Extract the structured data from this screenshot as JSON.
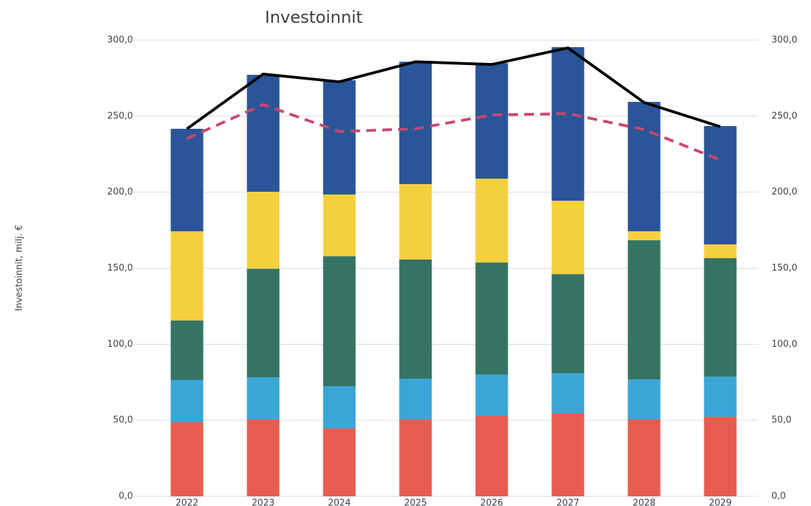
{
  "chart_data": {
    "type": "bar",
    "stacked": true,
    "title": "Investoinnit",
    "ylabel": "Investoinnit, milj. €",
    "categories": [
      "2022",
      "2023",
      "2024",
      "2025",
      "2026",
      "2027",
      "2028",
      "2029"
    ],
    "series": [
      {
        "color": "#e85c50",
        "values": [
          48.7,
          50.5,
          44.6,
          50.5,
          52.8,
          54.6,
          50.5,
          52.3
        ]
      },
      {
        "color": "#3aa6d8",
        "values": [
          27.8,
          27.8,
          27.8,
          26.9,
          27.3,
          26.4,
          26.4,
          26.4
        ]
      },
      {
        "color": "#357363",
        "values": [
          39.1,
          71.4,
          85.5,
          78.3,
          73.7,
          65.1,
          91.5,
          77.9
        ]
      },
      {
        "color": "#f4d03f",
        "values": [
          58.7,
          50.6,
          40.6,
          49.6,
          55.1,
          48.3,
          5.9,
          9.1
        ]
      },
      {
        "color": "#2a5599",
        "values": [
          67.4,
          76.9,
          75.1,
          80.5,
          76.0,
          101.0,
          85.1,
          77.8
        ]
      },
      {
        "type": "line",
        "color": "#000000",
        "values": [
          241.7,
          277.7,
          272.6,
          285.8,
          284.0,
          294.9,
          259.0,
          243.1
        ]
      },
      {
        "type": "line",
        "dashed": true,
        "color": "#c9476d",
        "values": [
          235.3,
          257.6,
          239.9,
          241.7,
          250.8,
          251.7,
          241.2,
          221.2
        ]
      }
    ],
    "ylim": [
      0,
      300
    ],
    "yticks": [
      {
        "value": 0,
        "label": "0,0"
      },
      {
        "value": 50,
        "label": "50,0"
      },
      {
        "value": 100,
        "label": "100,0"
      },
      {
        "value": 150,
        "label": "150,0"
      },
      {
        "value": 200,
        "label": "200,0"
      },
      {
        "value": 250,
        "label": "250,0"
      },
      {
        "value": 300,
        "label": "300,0"
      }
    ],
    "y2lim": [
      0,
      300
    ],
    "y2ticks": [
      {
        "value": 0,
        "label": "0,0"
      },
      {
        "value": 50,
        "label": "50,0"
      },
      {
        "value": 100,
        "label": "100,0"
      },
      {
        "value": 150,
        "label": "150,0"
      },
      {
        "value": 200,
        "label": "200,0"
      },
      {
        "value": 250,
        "label": "250,0"
      },
      {
        "value": 300,
        "label": "300,0"
      }
    ],
    "grid": true
  }
}
